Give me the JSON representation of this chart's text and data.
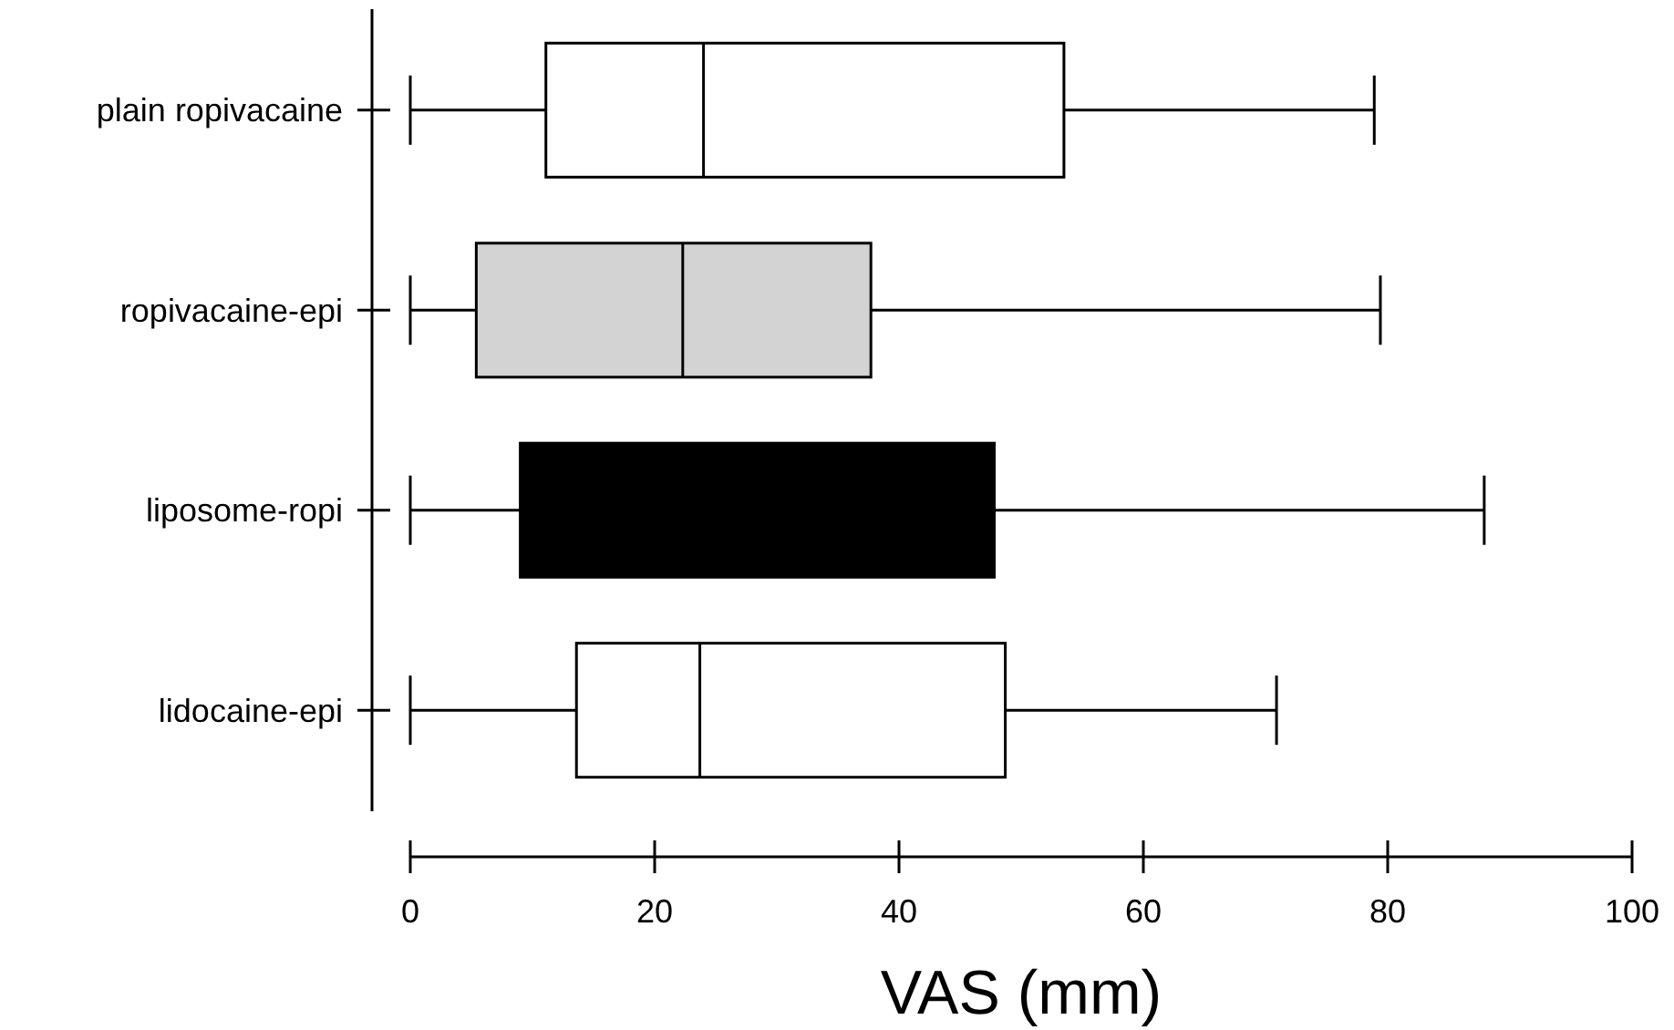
{
  "chart_data": {
    "type": "box",
    "orientation": "horizontal",
    "xlabel": "VAS (mm)",
    "categories": [
      "plain ropivacaine",
      "ropivacaine-epi",
      "liposome-ropi",
      "lidocaine-epi"
    ],
    "colors": [
      "#ffffff",
      "#d3d3d3",
      "#000000",
      "#ffffff"
    ],
    "boxes": [
      {
        "low": 0,
        "q1": 11.1,
        "median": 24.0,
        "q3": 53.5,
        "high": 78.9
      },
      {
        "low": 0,
        "q1": 5.4,
        "median": 22.3,
        "q3": 37.7,
        "high": 79.4
      },
      {
        "low": 0,
        "q1": 9.0,
        "median": null,
        "q3": 47.8,
        "high": 87.9
      },
      {
        "low": 0,
        "q1": 13.6,
        "median": 23.7,
        "q3": 48.7,
        "high": 70.9
      }
    ],
    "xlim": [
      0,
      100
    ],
    "xticks": [
      0,
      20,
      40,
      60,
      80,
      100
    ],
    "grid": false
  }
}
